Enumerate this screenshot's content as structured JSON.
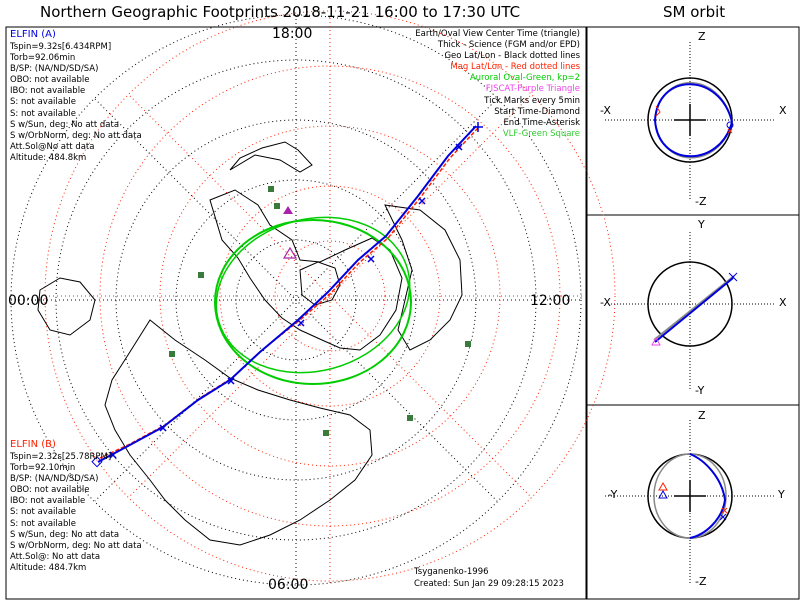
{
  "title": "Northern Geographic Footprints 2018-11-21 16:00 to 17:30 UTC",
  "sm_title": "SM orbit",
  "clock": {
    "top": "18:00",
    "left": "00:00",
    "right": "12:00",
    "bottom": "06:00"
  },
  "elfin_a": {
    "name": "ELFIN (A)",
    "lines": [
      "Tspin=9.32s[6.434RPM]",
      "Torb=92.06min",
      "B/SP: (NA/ND/SD/SA)",
      "OBO: not available",
      "IBO: not available",
      "S: not available",
      "S: not available",
      "S w/Sun, deg: No att data",
      "S w/OrbNorm, deg: No att data",
      "Att.Sol@No att data",
      "Altitude: 484.8km"
    ]
  },
  "elfin_b": {
    "name": "ELFIN (B)",
    "lines": [
      "Tspin=2.32s[25.78RPM]",
      "Torb=92.10min",
      "B/SP: (NA/ND/SD/SA)",
      "OBO: not available",
      "IBO: not available",
      "S: not available",
      "S: not available",
      "S w/Sun, deg: No att data",
      "S w/OrbNorm, deg: No att data",
      "Att.Sol@: No att data",
      "Altitude: 484.7km"
    ]
  },
  "legend": [
    {
      "text": "Earth/Oval View Center Time (triangle)",
      "color": "#000000"
    },
    {
      "text": "Thick - Science (FGM and/or EPD)",
      "color": "#000000"
    },
    {
      "text": "Geo Lat/Lon - Black dotted lines",
      "color": "#000000"
    },
    {
      "text": "Mag Lat/Lon - Red dotted lines",
      "color": "#ff2200"
    },
    {
      "text": "Auroral Oval-Green, kp=2",
      "color": "#00cc00"
    },
    {
      "text": "FISCAT-Purple Triangle",
      "color": "#ee44ee"
    },
    {
      "text": "Tick Marks every 5min",
      "color": "#000000"
    },
    {
      "text": "Start Time-Diamond",
      "color": "#000000"
    },
    {
      "text": "End Time-Asterisk",
      "color": "#000000"
    },
    {
      "text": "VLF-Green Square",
      "color": "#33cc33"
    }
  ],
  "footer": {
    "credit": "Tsyganenko-1996",
    "created": "Created: Sun Jan 29 09:28:15 2023"
  },
  "panels": [
    {
      "top": "Z",
      "bottom": "-Z",
      "left": "-X",
      "right": "X"
    },
    {
      "top": "Y",
      "bottom": "-Y",
      "left": "-X",
      "right": "X"
    },
    {
      "top": "Z",
      "bottom": "-Z",
      "left": "-Y",
      "right": "Y"
    }
  ],
  "colors": {
    "blue": "#0000dd",
    "red": "#ff2200",
    "green": "#00cc00",
    "purple": "#ee44ee"
  }
}
